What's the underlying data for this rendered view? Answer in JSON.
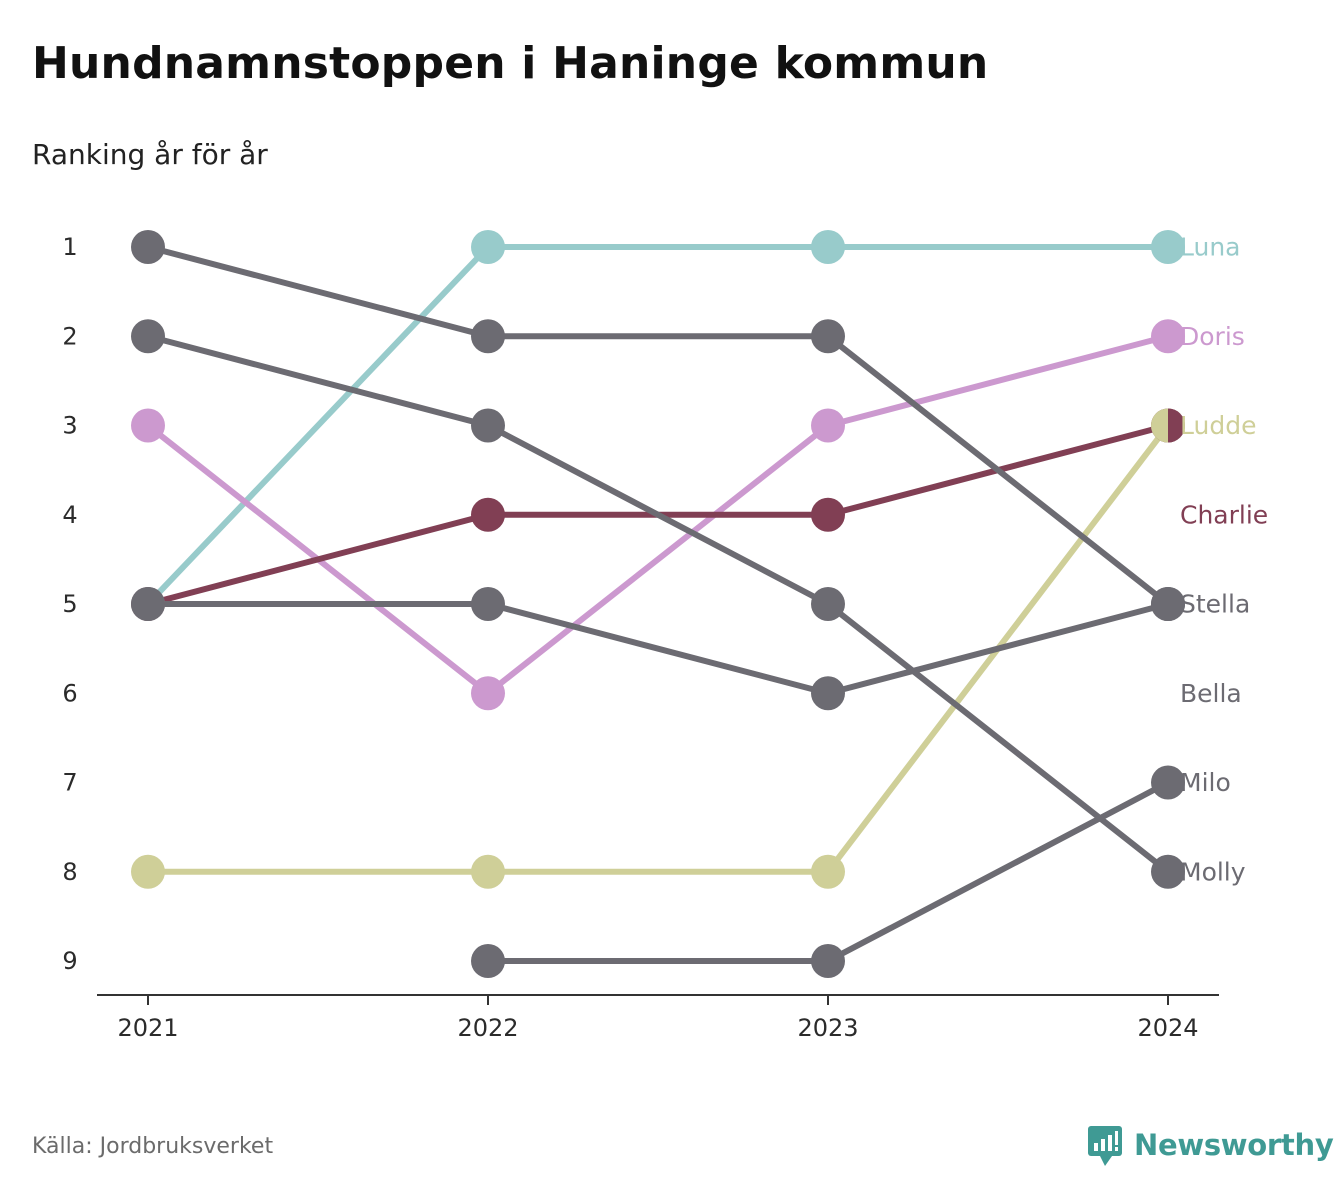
{
  "title": "Hundnamnstoppen i Haninge kommun",
  "subtitle": "Ranking år för år",
  "source": "Källa: Jordbruksverket",
  "brand": {
    "name": "Newsworthy",
    "icon": "newsworthy-logo-icon",
    "color": "#3f9a94"
  },
  "chart_data": {
    "type": "line",
    "subtype": "bump",
    "title": "Hundnamnstoppen i Haninge kommun",
    "subtitle": "Ranking år för år",
    "x": [
      "2021",
      "2022",
      "2023",
      "2024"
    ],
    "y_ticks": [
      "1",
      "2",
      "3",
      "4",
      "5",
      "6",
      "7",
      "8",
      "9"
    ],
    "ylim": [
      1,
      9
    ],
    "y_inverted": true,
    "grid": false,
    "legend": "direct labels right",
    "series": [
      {
        "name": "Luna",
        "color": "#98cbcb",
        "values": [
          5,
          1,
          1,
          1
        ]
      },
      {
        "name": "Doris",
        "color": "#cc99cf",
        "values": [
          3,
          6,
          3,
          2
        ]
      },
      {
        "name": "Ludde",
        "color": "#cfcf98",
        "values": [
          8,
          8,
          8,
          3
        ]
      },
      {
        "name": "Charlie",
        "color": "#813f54",
        "values": [
          5,
          4,
          4,
          3
        ]
      },
      {
        "name": "Stella",
        "color": "#6c6b72",
        "values": [
          1,
          2,
          2,
          5
        ]
      },
      {
        "name": "Bella",
        "color": "#6c6b72",
        "values": [
          5,
          5,
          6,
          5
        ]
      },
      {
        "name": "Milo",
        "color": "#6c6b72",
        "values": [
          null,
          9,
          9,
          7
        ]
      },
      {
        "name": "Molly",
        "color": "#6c6b72",
        "values": [
          2,
          3,
          5,
          8
        ]
      }
    ]
  }
}
